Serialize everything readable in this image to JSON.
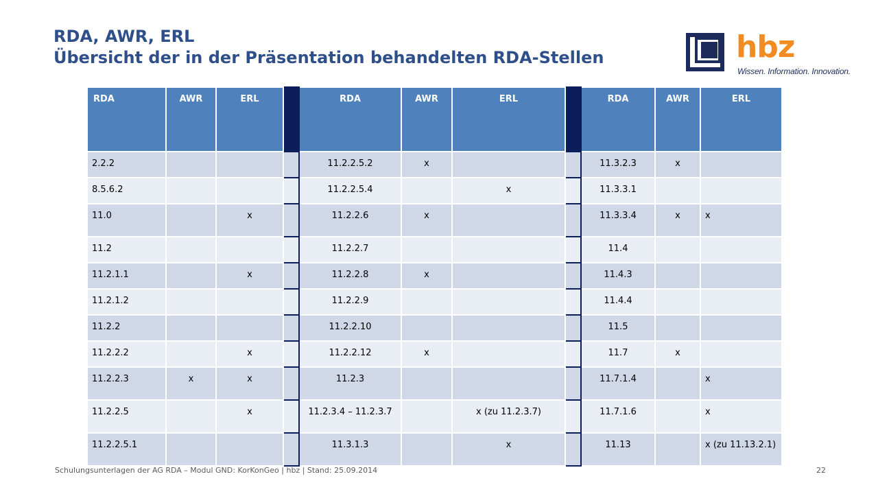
{
  "title": {
    "line1": "RDA, AWR, ERL",
    "line2": "Übersicht der in der Präsentation behandelten RDA-Stellen"
  },
  "logo": {
    "wordmark": "hbz",
    "tagline": "Wissen. Information. Innovation.",
    "colors": {
      "wordmark": "#f28c22",
      "mark": "#1c2a5c"
    }
  },
  "table": {
    "headers": [
      "RDA",
      "AWR",
      "ERL",
      "RDA",
      "AWR",
      "ERL",
      "RDA",
      "AWR",
      "ERL"
    ],
    "rows": [
      [
        "2.2.2",
        "",
        "",
        "11.2.2.5.2",
        "x",
        "",
        "11.3.2.3",
        "x",
        ""
      ],
      [
        "8.5.6.2",
        "",
        "",
        "11.2.2.5.4",
        "",
        "x",
        "11.3.3.1",
        "",
        ""
      ],
      [
        "11.0",
        "",
        "x",
        "11.2.2.6",
        "x",
        "",
        "11.3.3.4",
        "x",
        "x"
      ],
      [
        "11.2",
        "",
        "",
        "11.2.2.7",
        "",
        "",
        "11.4",
        "",
        ""
      ],
      [
        "11.2.1.1",
        "",
        "x",
        "11.2.2.8",
        "x",
        "",
        "11.4.3",
        "",
        ""
      ],
      [
        "11.2.1.2",
        "",
        "",
        "11.2.2.9",
        "",
        "",
        "11.4.4",
        "",
        ""
      ],
      [
        "11.2.2",
        "",
        "",
        "11.2.2.10",
        "",
        "",
        "11.5",
        "",
        ""
      ],
      [
        "11.2.2.2",
        "",
        "x",
        "11.2.2.12",
        "x",
        "",
        "11.7",
        "x",
        ""
      ],
      [
        "11.2.2.3",
        "x",
        "x",
        "11.2.3",
        "",
        "",
        "11.7.1.4",
        "",
        "x"
      ],
      [
        "11.2.2.5",
        "",
        "x",
        "11.2.3.4 – 11.2.3.7",
        "",
        "x (zu 11.2.3.7)",
        "11.7.1.6",
        "",
        "x"
      ],
      [
        "11.2.2.5.1",
        "",
        "",
        "11.3.1.3",
        "",
        "x",
        "11.13",
        "",
        "x (zu 11.13.2.1)"
      ]
    ],
    "colors": {
      "header": "#4f81bd",
      "row_odd": "#d0d8e8",
      "row_even": "#e9edf4",
      "separator": "#0c1e5a"
    }
  },
  "footer": {
    "text": "Schulungsunterlagen der AG RDA – Modul GND: KorKonGeo | hbz | Stand: 25.09.2014",
    "page_number": "22"
  }
}
